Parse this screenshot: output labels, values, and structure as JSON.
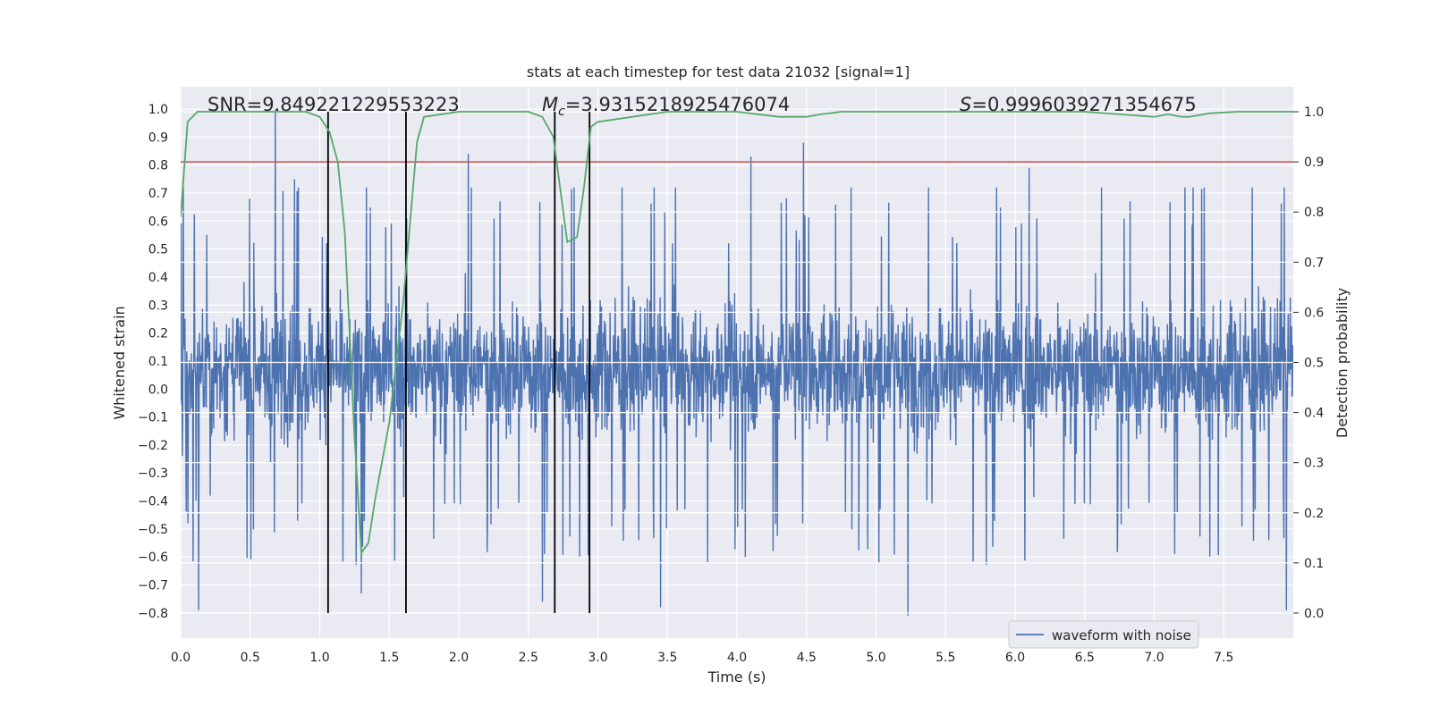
{
  "chart_data": {
    "type": "line",
    "title": "stats at each timestep for test data 21032 [signal=1]",
    "xlabel": "Time (s)",
    "ylabel_left": "Whitened strain",
    "ylabel_right": "Detection probability",
    "xlim": [
      0.0,
      8.0
    ],
    "ylim_left": [
      -0.89,
      1.08
    ],
    "ylim_right": [
      -0.05,
      1.05
    ],
    "x_ticks": [
      "0.0",
      "0.5",
      "1.0",
      "1.5",
      "2.0",
      "2.5",
      "3.0",
      "3.5",
      "4.0",
      "4.5",
      "5.0",
      "5.5",
      "6.0",
      "6.5",
      "7.0",
      "7.5"
    ],
    "y_ticks_left": [
      "1.0",
      "0.9",
      "0.8",
      "0.7",
      "0.6",
      "0.5",
      "0.4",
      "0.3",
      "0.2",
      "0.1",
      "0.0",
      "−0.1",
      "−0.2",
      "−0.3",
      "−0.4",
      "−0.5",
      "−0.6",
      "−0.7",
      "−0.8"
    ],
    "y_ticks_right": [
      "1.0",
      "0.9",
      "0.8",
      "0.7",
      "0.6",
      "0.5",
      "0.4",
      "0.3",
      "0.2",
      "0.1",
      "0.0"
    ],
    "annotations": {
      "snr": "SNR=9.849221229553223",
      "mc_symbol": "M",
      "mc_sub": "c",
      "mc_value": "=3.9315218925476074",
      "s_symbol": "S",
      "s_value": "=0.9996039271354675"
    },
    "legend": {
      "label": "waveform with noise",
      "placement": "lower-right"
    },
    "grid": true,
    "colors": {
      "background": "#eaeaf2",
      "grid": "#ffffff",
      "waveform": "#4c72b0",
      "probability": "#55a868",
      "threshold": "#c44e52",
      "markers": "#000000"
    },
    "series": [
      {
        "name": "waveform with noise",
        "axis": "left",
        "style": "dense noise",
        "typical_range": [
          -0.3,
          0.45
        ],
        "peaks": [
          {
            "x": 0.68,
            "y": 1.0
          },
          {
            "x": 2.07,
            "y": 0.84
          },
          {
            "x": 4.1,
            "y": 0.83
          },
          {
            "x": 4.48,
            "y": 0.88
          },
          {
            "x": 6.1,
            "y": 0.79
          },
          {
            "x": 0.82,
            "y": 0.75
          },
          {
            "x": 1.62,
            "y": 0.68
          },
          {
            "x": 7.28,
            "y": 0.72
          },
          {
            "x": 5.23,
            "y": -0.81
          },
          {
            "x": 0.13,
            "y": -0.79
          },
          {
            "x": 3.45,
            "y": -0.78
          },
          {
            "x": 7.95,
            "y": -0.79
          },
          {
            "x": 1.3,
            "y": -0.73
          },
          {
            "x": 2.6,
            "y": -0.76
          }
        ]
      },
      {
        "name": "Detection probability",
        "axis": "right",
        "x": [
          0.0,
          0.05,
          0.12,
          0.3,
          0.5,
          0.7,
          0.9,
          1.0,
          1.07,
          1.13,
          1.18,
          1.25,
          1.3,
          1.35,
          1.4,
          1.5,
          1.6,
          1.7,
          1.75,
          2.0,
          2.3,
          2.5,
          2.6,
          2.68,
          2.78,
          2.85,
          2.9,
          2.95,
          3.0,
          3.5,
          4.0,
          4.3,
          4.4,
          4.5,
          4.6,
          4.75,
          5.0,
          5.5,
          6.0,
          6.5,
          7.0,
          7.1,
          7.2,
          7.25,
          7.4,
          7.6,
          8.0
        ],
        "y": [
          0.79,
          0.98,
          1.0,
          1.0,
          1.0,
          1.0,
          1.0,
          0.99,
          0.96,
          0.9,
          0.76,
          0.35,
          0.12,
          0.14,
          0.23,
          0.38,
          0.62,
          0.94,
          0.99,
          1.0,
          1.0,
          1.0,
          0.99,
          0.95,
          0.74,
          0.75,
          0.85,
          0.97,
          0.98,
          1.0,
          1.0,
          0.99,
          0.99,
          0.99,
          0.995,
          1.0,
          1.0,
          1.0,
          1.0,
          1.0,
          0.99,
          0.995,
          0.99,
          0.99,
          0.997,
          1.0,
          1.0
        ]
      }
    ],
    "threshold": {
      "axis": "right",
      "y": 0.9
    },
    "vertical_markers": [
      1.06,
      1.62,
      2.69,
      2.94
    ]
  }
}
